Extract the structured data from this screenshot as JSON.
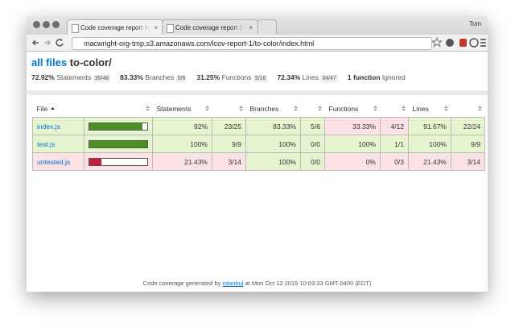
{
  "browser": {
    "tabs": [
      "Code coverage report for t",
      "Code coverage report for t"
    ],
    "user": "Tom",
    "url": "macwright-org-tmp.s3.amazonaws.com/lcov-report-1/to-color/index.html"
  },
  "header": {
    "link": "all files",
    "title": "to-color/",
    "summary": [
      {
        "pct": "72.92%",
        "label": "Statements",
        "fraction": "35/48"
      },
      {
        "pct": "83.33%",
        "label": "Branches",
        "fraction": "5/6"
      },
      {
        "pct": "31.25%",
        "label": "Functions",
        "fraction": "5/16"
      },
      {
        "pct": "72.34%",
        "label": "Lines",
        "fraction": "34/47"
      }
    ],
    "ignored": {
      "count": "1 function",
      "label": "Ignored"
    }
  },
  "table": {
    "columns": [
      "File",
      "Statements",
      "Branches",
      "Functions",
      "Lines"
    ],
    "rows": [
      {
        "file": "index.js",
        "cells": [
          "92%",
          "23/25",
          "83.33%",
          "5/6",
          "33.33%",
          "4/12",
          "91.67%",
          "22/24"
        ],
        "colors": [
          "#e6f5d0",
          "#e6f5d0",
          "#e6f5d0",
          "#fce1e5",
          "#e6f5d0"
        ],
        "bar_color": "#4d9221"
      },
      {
        "file": "test.js",
        "cells": [
          "100%",
          "9/9",
          "100%",
          "0/0",
          "100%",
          "1/1",
          "100%",
          "9/9"
        ],
        "colors": [
          "#e6f5d0",
          "#e6f5d0",
          "#e6f5d0",
          "#e6f5d0",
          "#e6f5d0"
        ],
        "bar_color": "#4d9221"
      },
      {
        "file": "untested.js",
        "cells": [
          "21.43%",
          "3/14",
          "100%",
          "0/0",
          "0%",
          "0/3",
          "21.43%",
          "3/14"
        ],
        "colors": [
          "#fce1e5",
          "#fce1e5",
          "#e6f5d0",
          "#fce1e5",
          "#fce1e5"
        ],
        "bar_color": "#c21f39"
      }
    ]
  },
  "footer": {
    "text": "Code coverage generated by",
    "link": "istanbul",
    "date": "at Mon Oct 12 2015 10:03:33 GMT-0400 (EDT)"
  }
}
